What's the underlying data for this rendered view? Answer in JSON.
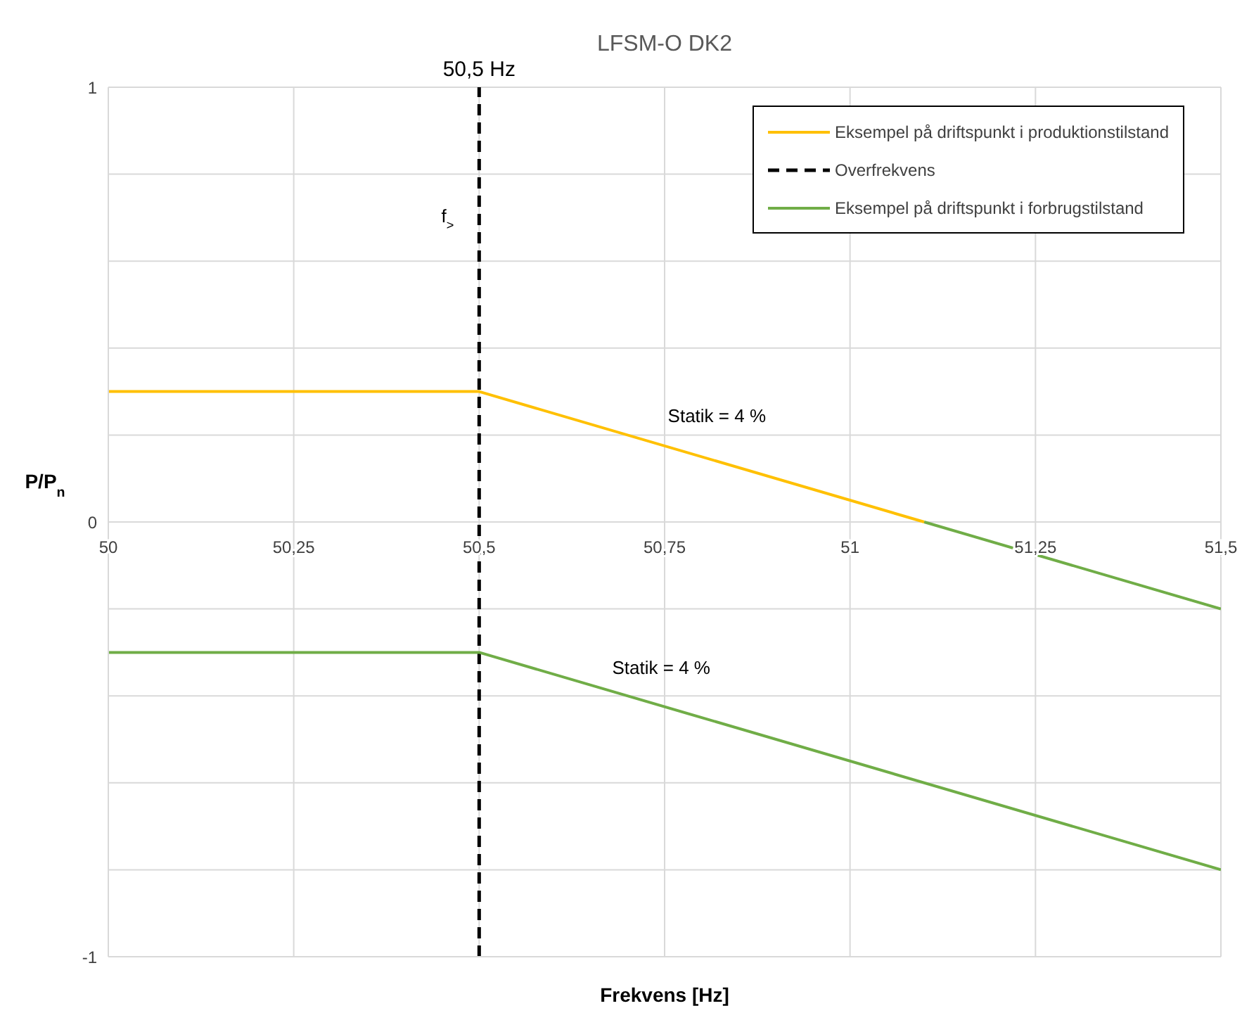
{
  "chart_data": {
    "type": "line",
    "title": "LFSM-O DK2",
    "xlabel": "Frekvens [Hz]",
    "ylabel": "P/P$_{n}$",
    "series": [
      {
        "name": "Eksempel på driftspunkt i produktionstilstand",
        "color": "#ffc000",
        "x": [
          50,
          50.5,
          51.1
        ],
        "values": [
          0.3,
          0.3,
          0
        ]
      },
      {
        "name": "Overfrekvens",
        "color": "#000000",
        "line_style": "dashed",
        "x": [
          50.5,
          50.5
        ],
        "values": [
          -1,
          1
        ]
      },
      {
        "name": "Eksempel på driftspunkt i forbrugstilstand",
        "color": "#70ad47",
        "x": [
          50,
          50.5,
          51.5
        ],
        "values": [
          -0.3,
          -0.3,
          -0.8
        ]
      },
      {
        "color": "#70ad47",
        "x": [
          51.1,
          51.5
        ],
        "values": [
          0,
          -0.2
        ]
      }
    ],
    "annotations": [
      {
        "text": "50,5 Hz",
        "x": 50.5,
        "y": 1
      },
      "f$_{>}$",
      "Statik = 4 %",
      "Statik = 4 %"
    ],
    "xlim": [
      50,
      51.5
    ],
    "xticks": [
      {
        "value": 50,
        "label": "50"
      },
      {
        "value": 50.25,
        "label": "50,25"
      },
      {
        "value": 50.5,
        "label": "50,5"
      },
      {
        "value": 50.75,
        "label": "50,75"
      },
      {
        "value": 51,
        "label": "51"
      },
      {
        "value": 51.25,
        "label": "51,25"
      },
      {
        "value": 51.5,
        "label": "51,5"
      }
    ],
    "ylim": [
      -1,
      1
    ],
    "yticks": [
      -1,
      {
        "value": -0.8,
        "label": null
      },
      {
        "value": -0.6,
        "label": null
      },
      {
        "value": -0.4,
        "label": null
      },
      {
        "value": -0.2,
        "label": null
      },
      0,
      {
        "value": 0.2,
        "label": null
      },
      {
        "value": 0.4,
        "label": null
      },
      {
        "value": 0.6,
        "label": null
      },
      {
        "value": 0.8,
        "label": null
      },
      1
    ],
    "grid": true,
    "legend": "top right",
    "marker": "none",
    "line_style": "solid"
  }
}
